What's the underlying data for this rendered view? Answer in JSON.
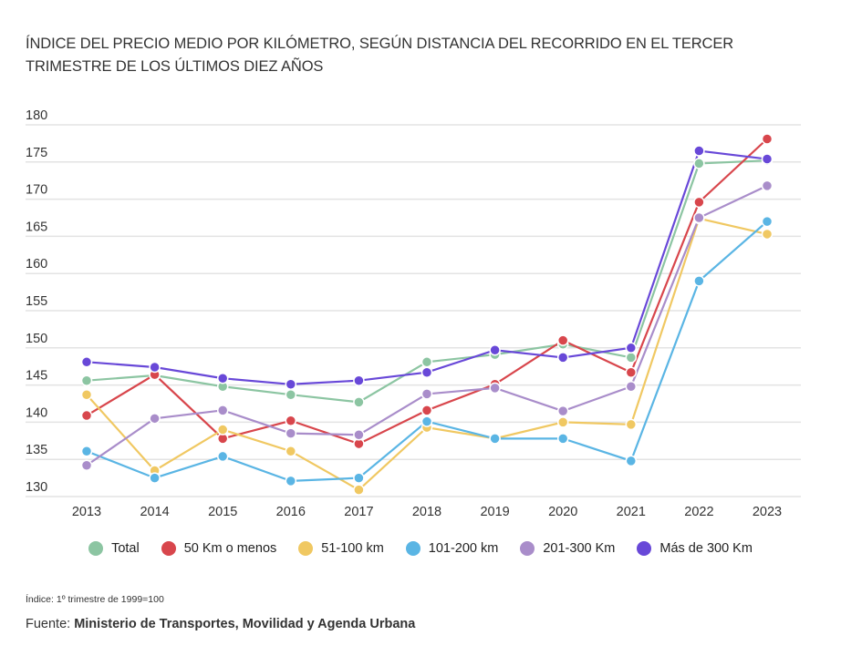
{
  "chart_data": {
    "type": "line",
    "title": "ÍNDICE DEL PRECIO MEDIO POR KILÓMETRO, SEGÚN DISTANCIA DEL RECORRIDO EN EL TERCER TRIMESTRE DE LOS ÚLTIMOS DIEZ AÑOS",
    "xlabel": "",
    "ylabel": "",
    "ylim": [
      130,
      180
    ],
    "yticks": [
      130,
      135,
      140,
      145,
      150,
      155,
      160,
      165,
      170,
      175,
      180
    ],
    "categories": [
      "2013",
      "2014",
      "2015",
      "2016",
      "2017",
      "2018",
      "2019",
      "2020",
      "2021",
      "2022",
      "2023"
    ],
    "grid": true,
    "legend_position": "bottom",
    "series": [
      {
        "name": "Total",
        "color": "#8cc5a2",
        "values": [
          145.6,
          146.3,
          144.8,
          143.7,
          142.7,
          148.1,
          149.1,
          150.5,
          148.7,
          174.8,
          175.2
        ]
      },
      {
        "name": "50 Km o menos",
        "color": "#d8464c",
        "values": [
          140.9,
          146.4,
          137.8,
          140.2,
          137.1,
          141.6,
          145.1,
          151.0,
          146.7,
          169.6,
          178.1
        ]
      },
      {
        "name": "51-100 km",
        "color": "#f0c862",
        "values": [
          143.7,
          133.5,
          139.0,
          136.1,
          130.9,
          139.3,
          137.8,
          140.0,
          139.7,
          167.4,
          165.3
        ]
      },
      {
        "name": "101-200 km",
        "color": "#5ab5e4",
        "values": [
          136.1,
          132.5,
          135.4,
          132.1,
          132.5,
          140.1,
          137.8,
          137.8,
          134.8,
          159.0,
          167.0
        ]
      },
      {
        "name": "201-300 Km",
        "color": "#a98dca",
        "values": [
          134.2,
          140.5,
          141.6,
          138.5,
          138.3,
          143.8,
          144.6,
          141.5,
          144.8,
          167.5,
          171.8
        ]
      },
      {
        "name": "Más de 300 Km",
        "color": "#6848d8",
        "values": [
          148.1,
          147.4,
          145.9,
          145.1,
          145.6,
          146.7,
          149.7,
          148.7,
          150.0,
          176.5,
          175.4
        ]
      }
    ]
  },
  "footnote": "Índice: 1º trimestre de 1999=100",
  "source_label": "Fuente:",
  "source_text": "Ministerio de Transportes, Movilidad y Agenda Urbana"
}
